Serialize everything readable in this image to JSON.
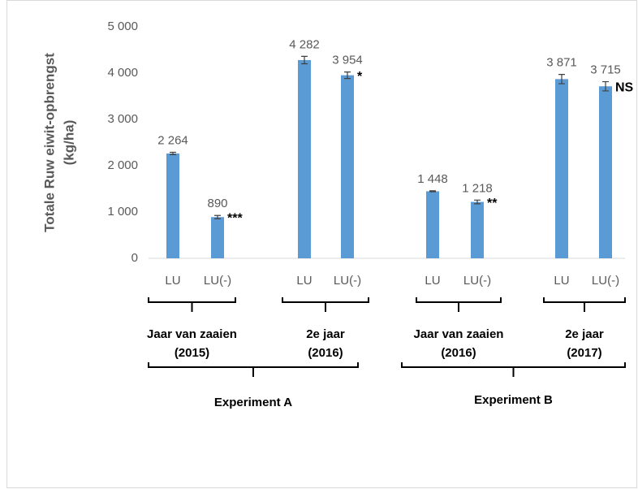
{
  "chart_data": {
    "type": "bar",
    "ylabel": [
      "Totale Ruw eiwit-opbrengst",
      "(kg/ha)"
    ],
    "categories": [
      "LU",
      "LU(-)",
      "LU",
      "LU(-)",
      "LU",
      "LU(-)",
      "LU",
      "LU(-)"
    ],
    "values": [
      2264,
      890,
      4282,
      3954,
      1448,
      1218,
      3871,
      3715
    ],
    "value_labels": [
      "2 264",
      "890",
      "4 282",
      "3 954",
      "1 448",
      "1 218",
      "3 871",
      "3 715"
    ],
    "errors": [
      25,
      35,
      80,
      70,
      10,
      40,
      100,
      100
    ],
    "color": "#5b9bd5",
    "annotations": [
      {
        "index": 1,
        "text": "***"
      },
      {
        "index": 3,
        "text": "*"
      },
      {
        "index": 5,
        "text": "**"
      },
      {
        "index": 7,
        "text": "NS"
      }
    ],
    "groups": [
      [
        "Jaar van zaaien",
        "(2015)"
      ],
      [
        "2e jaar",
        "(2016)"
      ],
      [
        "Jaar van zaaien",
        "(2016)"
      ],
      [
        "2e jaar",
        "(2017)"
      ]
    ],
    "experiments": [
      "Experiment A",
      "Experiment B"
    ],
    "ylim": [
      0,
      5000
    ],
    "yticks": [
      0,
      {
        "value": 1000,
        "label": "1 000"
      },
      {
        "value": 2000,
        "label": "2 000"
      },
      {
        "value": 3000,
        "label": "3 000"
      },
      {
        "value": 4000,
        "label": "4 000"
      },
      {
        "value": 5000,
        "label": "5 000"
      }
    ],
    "grid": false
  }
}
